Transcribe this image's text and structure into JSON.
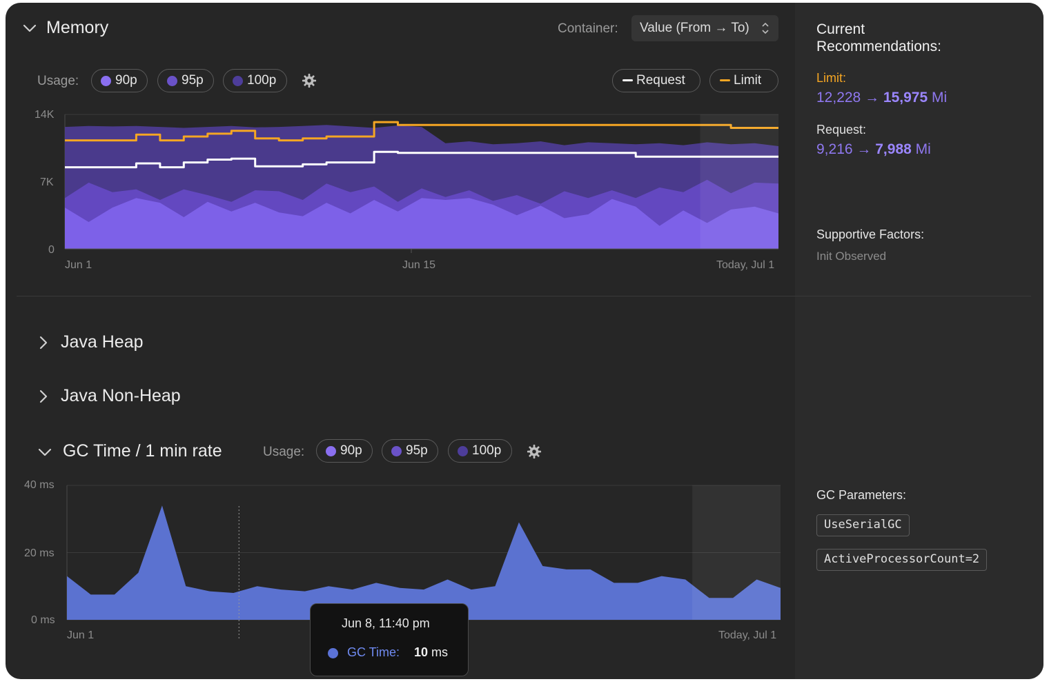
{
  "memory": {
    "title": "Memory",
    "container_label": "Container:",
    "container_value": "Value (From → To)",
    "usage_label": "Usage:",
    "pills": [
      "90p",
      "95p",
      "100p"
    ],
    "pill_colors": [
      "#8a6ff0",
      "#6a52c8",
      "#4d3d9a"
    ],
    "request_label": "Request",
    "limit_label": "Limit",
    "request_color": "#ffffff",
    "limit_color": "#f5a623"
  },
  "sections": {
    "java_heap": "Java Heap",
    "java_non_heap": "Java Non-Heap"
  },
  "gc": {
    "title": "GC Time / 1 min rate",
    "usage_label": "Usage:",
    "pills": [
      "90p",
      "95p",
      "100p"
    ],
    "tooltip": {
      "date": "Jun 8, 11:40 pm",
      "series": "GC Time:",
      "value": "10",
      "unit": "ms"
    }
  },
  "right_panel": {
    "title_line1": "Current",
    "title_line2": "Recommendations:",
    "limit_label": "Limit:",
    "limit_from": "12,228",
    "limit_to": "15,975",
    "limit_unit": "Mi",
    "request_label": "Request:",
    "request_from": "9,216",
    "request_to": "7,988",
    "request_unit": "Mi",
    "arrow": "→",
    "supportive_label": "Supportive Factors:",
    "supportive_value": "Init Observed",
    "gc_params_label": "GC Parameters:",
    "gc_params": [
      "UseSerialGC",
      "ActiveProcessorCount=2"
    ]
  },
  "chart_data": [
    {
      "type": "area",
      "y_ticks": [
        "14K",
        "7K",
        "0"
      ],
      "x_ticks": [
        "Jun 1",
        "Jun 15",
        "Today, Jul 1"
      ],
      "ylim": [
        0,
        14000
      ],
      "grid": true,
      "x": [
        1,
        2,
        3,
        4,
        5,
        6,
        7,
        8,
        9,
        10,
        11,
        12,
        13,
        14,
        15,
        16,
        17,
        18,
        19,
        20,
        21,
        22,
        23,
        24,
        25,
        26,
        27,
        28,
        29,
        30,
        31
      ],
      "series": [
        {
          "name": "100p",
          "values": [
            12700,
            12800,
            12750,
            12800,
            12700,
            12600,
            12700,
            12800,
            12650,
            12700,
            12800,
            12900,
            12750,
            12600,
            12850,
            12700,
            11000,
            11200,
            10900,
            11000,
            11200,
            10800,
            11100,
            11000,
            10900,
            11000,
            10800,
            11100,
            10900,
            11000,
            10700
          ]
        },
        {
          "name": "95p",
          "values": [
            5300,
            6900,
            5900,
            6200,
            5100,
            6200,
            5600,
            4900,
            6100,
            6000,
            5100,
            6800,
            5900,
            6500,
            4900,
            6300,
            5400,
            6100,
            5000,
            5600,
            4700,
            6000,
            5300,
            6100,
            5300,
            6400,
            5900,
            7200,
            5800,
            6900,
            6800
          ]
        },
        {
          "name": "90p",
          "values": [
            4300,
            2800,
            4300,
            5300,
            4800,
            3300,
            4900,
            3900,
            4800,
            3800,
            3400,
            4800,
            3700,
            5100,
            3900,
            5300,
            5100,
            5300,
            4600,
            3500,
            4500,
            3200,
            3600,
            5200,
            4400,
            2400,
            4000,
            2700,
            4100,
            4400,
            3700
          ]
        },
        {
          "name": "Limit",
          "values": [
            11300,
            11300,
            11300,
            11900,
            11300,
            11700,
            12000,
            12300,
            11500,
            11300,
            11500,
            11700,
            11700,
            13200,
            12900,
            12900,
            12900,
            12900,
            12900,
            12900,
            12900,
            12900,
            12900,
            12900,
            12900,
            12900,
            12900,
            12900,
            12600,
            12600,
            12600
          ]
        },
        {
          "name": "Request",
          "values": [
            8500,
            8500,
            8500,
            8900,
            8500,
            9000,
            9300,
            9400,
            8600,
            8600,
            8800,
            9000,
            9000,
            10100,
            10000,
            10000,
            10000,
            10000,
            10000,
            10000,
            10000,
            10000,
            10000,
            10000,
            9600,
            9600,
            9600,
            9600,
            9600,
            9600,
            9600
          ]
        }
      ]
    },
    {
      "type": "area",
      "y_ticks": [
        "40 ms",
        "20 ms",
        "0 ms"
      ],
      "x_ticks": [
        "Jun 1",
        "Today, Jul 1"
      ],
      "ylim": [
        0,
        40
      ],
      "grid": true,
      "x": [
        1,
        2,
        3,
        4,
        5,
        6,
        7,
        8,
        9,
        10,
        11,
        12,
        13,
        14,
        15,
        16,
        17,
        18,
        19,
        20,
        21,
        22,
        23,
        24,
        25,
        26,
        27,
        28,
        29,
        30,
        31
      ],
      "series": [
        {
          "name": "GC Time",
          "values": [
            13,
            7.5,
            7.5,
            14,
            34,
            10,
            8.5,
            8,
            10,
            9,
            8.5,
            10,
            9,
            11,
            9.5,
            9,
            12,
            9,
            10,
            29,
            16,
            15,
            15,
            11,
            11,
            13,
            12,
            6.5,
            6.5,
            12,
            9.5
          ]
        }
      ]
    }
  ]
}
